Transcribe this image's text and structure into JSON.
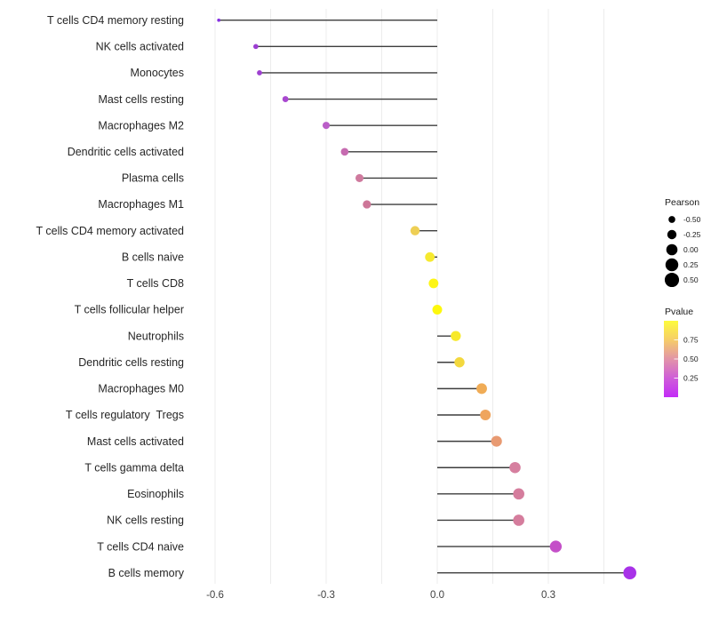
{
  "chart_data": {
    "type": "scatter",
    "variant": "horizontal-lollipop",
    "title": "",
    "xlabel": "",
    "ylabel": "",
    "xlim": [
      -0.66,
      0.56
    ],
    "grid": "light vertical gridlines every 0.15",
    "baseline": 0.0,
    "x_ticks": [
      {
        "label": "-0.6",
        "value": -0.6
      },
      {
        "label": "-0.3",
        "value": -0.3
      },
      {
        "label": "0.0",
        "value": 0.0
      },
      {
        "label": "0.3",
        "value": 0.3
      }
    ],
    "rows": [
      {
        "label": "T cells CD4 memory resting",
        "pearson": -0.59,
        "color": "#8531e0"
      },
      {
        "label": "NK cells activated",
        "pearson": -0.49,
        "color": "#9c3ed2"
      },
      {
        "label": "Monocytes",
        "pearson": -0.48,
        "color": "#9e40d0"
      },
      {
        "label": "Mast cells resting",
        "pearson": -0.41,
        "color": "#a948d0"
      },
      {
        "label": "Macrophages M2",
        "pearson": -0.3,
        "color": "#ba5ec8"
      },
      {
        "label": "Dendritic cells activated",
        "pearson": -0.25,
        "color": "#c66bb0"
      },
      {
        "label": "Plasma cells",
        "pearson": -0.21,
        "color": "#cf7a9e"
      },
      {
        "label": "Macrophages M1",
        "pearson": -0.19,
        "color": "#cd7698"
      },
      {
        "label": "T cells CD4 memory activated",
        "pearson": -0.06,
        "color": "#eecf55"
      },
      {
        "label": "B cells naive",
        "pearson": -0.02,
        "color": "#f6e92f"
      },
      {
        "label": "T cells CD8",
        "pearson": -0.01,
        "color": "#fdf515"
      },
      {
        "label": "T cells follicular helper",
        "pearson": 0.0,
        "color": "#fdf80d"
      },
      {
        "label": "Neutrophils",
        "pearson": 0.05,
        "color": "#f7e92a"
      },
      {
        "label": "Dendritic cells resting",
        "pearson": 0.06,
        "color": "#f3d83e"
      },
      {
        "label": "Macrophages M0",
        "pearson": 0.12,
        "color": "#f0ac56"
      },
      {
        "label": "T cells regulatory  Tregs",
        "pearson": 0.13,
        "color": "#efa55e"
      },
      {
        "label": "Mast cells activated",
        "pearson": 0.16,
        "color": "#e89a72"
      },
      {
        "label": "T cells gamma delta",
        "pearson": 0.21,
        "color": "#d67f9f"
      },
      {
        "label": "Eosinophils",
        "pearson": 0.22,
        "color": "#d57d9d"
      },
      {
        "label": "NK cells resting",
        "pearson": 0.22,
        "color": "#d57d9d"
      },
      {
        "label": "T cells CD4 naive",
        "pearson": 0.32,
        "color": "#c44fc8"
      },
      {
        "label": "B cells memory",
        "pearson": 0.52,
        "color": "#a832e8"
      }
    ],
    "stem_color": "#3d3d3d",
    "grid_color": "#ececec",
    "axis_text_color": "#404040",
    "label_text_color": "#262626"
  },
  "legend_pearson": {
    "title": "Pearson",
    "dot_color": "#000000",
    "entries": [
      {
        "label": "-0.50",
        "value": -0.5
      },
      {
        "label": "-0.25",
        "value": -0.25
      },
      {
        "label": "0.00",
        "value": 0.0
      },
      {
        "label": "0.25",
        "value": 0.25
      },
      {
        "label": "0.50",
        "value": 0.5
      }
    ]
  },
  "legend_pvalue": {
    "title": "Pvalue",
    "tick_labels": [
      {
        "label": "0.75",
        "value": 0.75
      },
      {
        "label": "0.50",
        "value": 0.5
      },
      {
        "label": "0.25",
        "value": 0.25
      }
    ],
    "gradient_top_to_bottom": [
      "#fdfb3d",
      "#f6cd68",
      "#e294a8",
      "#cf5ed8",
      "#c32bf7"
    ]
  }
}
